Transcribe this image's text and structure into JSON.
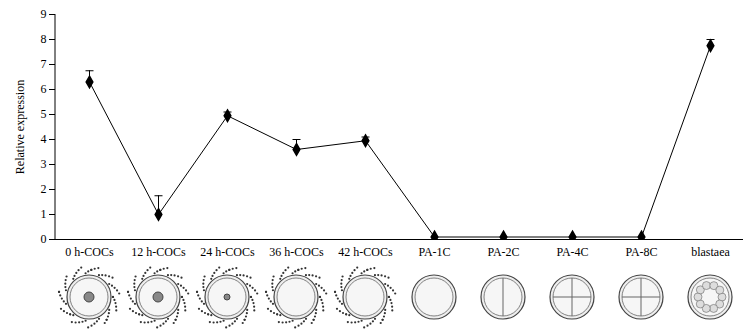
{
  "chart_data": {
    "type": "line",
    "y_label": "Relative expression",
    "categories": [
      "0 h-COCs",
      "12 h-COCs",
      "24 h-COCs",
      "36 h-COCs",
      "42 h-COCs",
      "PA-1C",
      "PA-2C",
      "PA-4C",
      "PA-8C",
      "blastaea"
    ],
    "values": [
      6.3,
      1.0,
      4.95,
      3.6,
      3.95,
      0.1,
      0.1,
      0.1,
      0.1,
      7.75
    ],
    "errors": [
      0.45,
      0.75,
      0.15,
      0.4,
      0.15,
      0,
      0,
      0,
      0,
      0.25
    ],
    "color": "#000000",
    "marker": "diamond",
    "ylim": [
      0,
      9
    ],
    "yticks": [
      0,
      1,
      2,
      3,
      4,
      5,
      6,
      7,
      8,
      9
    ],
    "grid": false
  }
}
